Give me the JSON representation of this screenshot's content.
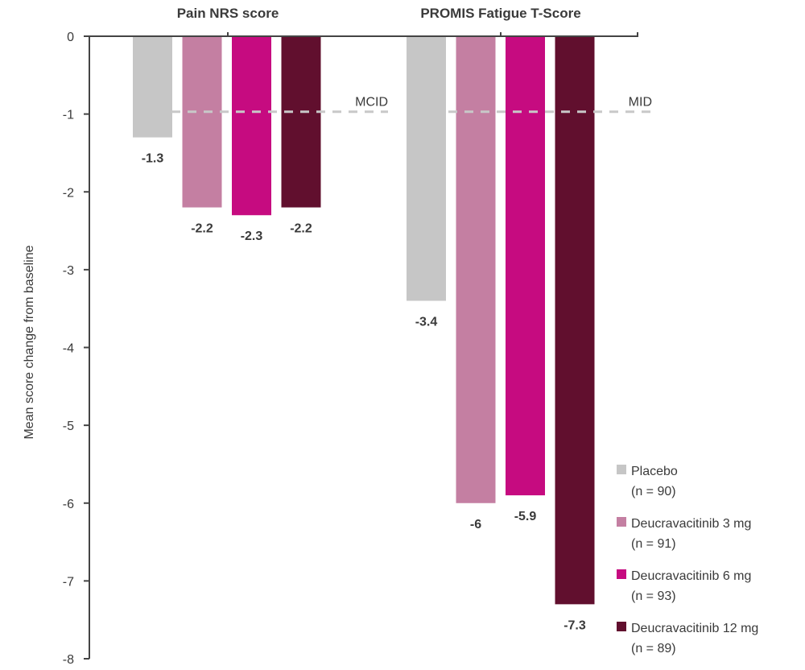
{
  "chart_data": {
    "type": "bar",
    "ylabel": "Mean score change from baseline",
    "ylim": [
      -8,
      0
    ],
    "yticks": [
      "0",
      "-1",
      "-2",
      "-3",
      "-4",
      "-5",
      "-6",
      "-7",
      "-8"
    ],
    "ytick_values": [
      0,
      -1,
      -2,
      -3,
      -4,
      -5,
      -6,
      -7,
      -8
    ],
    "grid": false,
    "legend_position": "bottom-right",
    "groups": [
      {
        "title": "Pain NRS score",
        "reference_line": {
          "label": "MCID",
          "value": -0.97
        },
        "values": [
          -1.3,
          -2.2,
          -2.3,
          -2.2
        ],
        "labels": [
          "-1.3",
          "-2.2",
          "-2.3",
          "-2.2"
        ]
      },
      {
        "title": "PROMIS Fatigue T-Score",
        "reference_line": {
          "label": "MID",
          "value": -0.97
        },
        "values": [
          -3.4,
          -6,
          -5.9,
          -7.3
        ],
        "labels": [
          "-3.4",
          "-6",
          "-5.9",
          "-7.3"
        ]
      }
    ],
    "series": [
      {
        "name": "Placebo",
        "n": "(n = 90)",
        "color": "#c6c6c6"
      },
      {
        "name": "Deucravacitinib 3 mg",
        "n": "(n = 91)",
        "color": "#c47fa2"
      },
      {
        "name": "Deucravacitinib 6 mg",
        "n": "(n = 93)",
        "color": "#c60b80"
      },
      {
        "name": "Deucravacitinib 12 mg",
        "n": "(n = 89)",
        "color": "#610f2e"
      }
    ]
  }
}
